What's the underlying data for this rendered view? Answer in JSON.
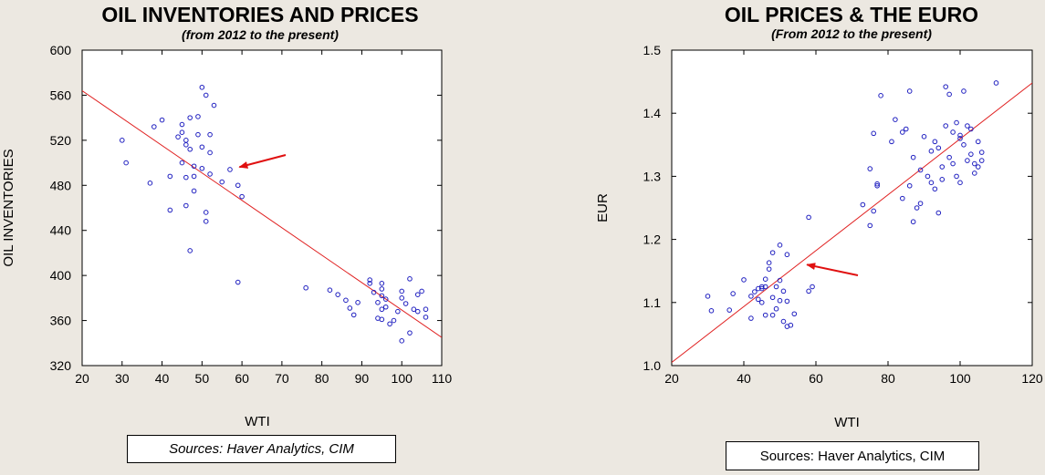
{
  "chart_data": [
    {
      "type": "scatter",
      "title": "OIL INVENTORIES AND PRICES",
      "subtitle": "(from 2012 to the present)",
      "xlabel": "WTI",
      "ylabel": "OIL INVENTORIES",
      "xlim": [
        20,
        110
      ],
      "ylim": [
        320,
        600
      ],
      "xticks": [
        20,
        30,
        40,
        50,
        60,
        70,
        80,
        90,
        100,
        110
      ],
      "yticks": [
        320,
        360,
        400,
        440,
        480,
        520,
        560,
        600
      ],
      "source": "Sources:  Haver Analytics, CIM",
      "regression_line": {
        "x": [
          20,
          110
        ],
        "y": [
          564,
          345
        ]
      },
      "arrow_target": {
        "x": 58,
        "y": 497
      },
      "colors": {
        "points": "#2020c0",
        "line": "#e02020",
        "arrow": "#e01010"
      },
      "points": [
        [
          30,
          520
        ],
        [
          31,
          500
        ],
        [
          37,
          482
        ],
        [
          38,
          532
        ],
        [
          40,
          538
        ],
        [
          42,
          488
        ],
        [
          42,
          458
        ],
        [
          44,
          523
        ],
        [
          45,
          527
        ],
        [
          45,
          534
        ],
        [
          45,
          500
        ],
        [
          46,
          516
        ],
        [
          46,
          520
        ],
        [
          46,
          462
        ],
        [
          46,
          487
        ],
        [
          47,
          540
        ],
        [
          47,
          512
        ],
        [
          47,
          422
        ],
        [
          48,
          475
        ],
        [
          48,
          497
        ],
        [
          48,
          488
        ],
        [
          49,
          541
        ],
        [
          49,
          525
        ],
        [
          50,
          567
        ],
        [
          50,
          514
        ],
        [
          50,
          495
        ],
        [
          51,
          456
        ],
        [
          51,
          448
        ],
        [
          51,
          560
        ],
        [
          52,
          490
        ],
        [
          52,
          509
        ],
        [
          52,
          525
        ],
        [
          53,
          551
        ],
        [
          55,
          483
        ],
        [
          57,
          494
        ],
        [
          59,
          480
        ],
        [
          59,
          394
        ],
        [
          60,
          470
        ],
        [
          76,
          389
        ],
        [
          82,
          387
        ],
        [
          84,
          383
        ],
        [
          86,
          378
        ],
        [
          87,
          371
        ],
        [
          88,
          365
        ],
        [
          89,
          376
        ],
        [
          92,
          396
        ],
        [
          92,
          393
        ],
        [
          93,
          385
        ],
        [
          94,
          362
        ],
        [
          94,
          376
        ],
        [
          95,
          393
        ],
        [
          95,
          388
        ],
        [
          95,
          382
        ],
        [
          95,
          370
        ],
        [
          95,
          361
        ],
        [
          96,
          379
        ],
        [
          97,
          357
        ],
        [
          98,
          360
        ],
        [
          99,
          368
        ],
        [
          100,
          380
        ],
        [
          100,
          386
        ],
        [
          100,
          342
        ],
        [
          101,
          375
        ],
        [
          102,
          349
        ],
        [
          102,
          397
        ],
        [
          103,
          370
        ],
        [
          104,
          368
        ],
        [
          105,
          386
        ],
        [
          106,
          370
        ],
        [
          106,
          363
        ],
        [
          104,
          383
        ],
        [
          96,
          372
        ]
      ]
    },
    {
      "type": "scatter",
      "title": "OIL PRICES & THE EURO",
      "subtitle": "(From 2012 to the present)",
      "xlabel": "WTI",
      "ylabel": "EUR",
      "xlim": [
        20,
        120
      ],
      "ylim": [
        1.0,
        1.5
      ],
      "xticks": [
        20,
        40,
        60,
        80,
        100,
        120
      ],
      "yticks": [
        1.0,
        1.1,
        1.2,
        1.3,
        1.4,
        1.5
      ],
      "source": "Sources:  Haver Analytics, CIM",
      "regression_line": {
        "x": [
          20,
          120
        ],
        "y": [
          1.005,
          1.448
        ]
      },
      "arrow_target": {
        "x": 56,
        "y": 1.16
      },
      "colors": {
        "points": "#2020c0",
        "line": "#e02020",
        "arrow": "#e01010"
      },
      "points": [
        [
          30,
          1.11
        ],
        [
          31,
          1.087
        ],
        [
          36,
          1.088
        ],
        [
          37,
          1.114
        ],
        [
          40,
          1.136
        ],
        [
          42,
          1.075
        ],
        [
          42,
          1.11
        ],
        [
          43,
          1.117
        ],
        [
          44,
          1.105
        ],
        [
          44,
          1.122
        ],
        [
          45,
          1.125
        ],
        [
          45,
          1.122
        ],
        [
          45,
          1.1
        ],
        [
          46,
          1.125
        ],
        [
          46,
          1.08
        ],
        [
          46,
          1.137
        ],
        [
          47,
          1.153
        ],
        [
          47,
          1.163
        ],
        [
          48,
          1.179
        ],
        [
          48,
          1.08
        ],
        [
          48,
          1.108
        ],
        [
          49,
          1.09
        ],
        [
          49,
          1.125
        ],
        [
          50,
          1.191
        ],
        [
          50,
          1.135
        ],
        [
          50,
          1.103
        ],
        [
          51,
          1.07
        ],
        [
          51,
          1.118
        ],
        [
          52,
          1.062
        ],
        [
          52,
          1.102
        ],
        [
          52,
          1.176
        ],
        [
          53,
          1.064
        ],
        [
          54,
          1.082
        ],
        [
          58,
          1.235
        ],
        [
          58,
          1.118
        ],
        [
          59,
          1.125
        ],
        [
          73,
          1.255
        ],
        [
          75,
          1.222
        ],
        [
          75,
          1.312
        ],
        [
          76,
          1.245
        ],
        [
          77,
          1.285
        ],
        [
          76,
          1.368
        ],
        [
          77,
          1.288
        ],
        [
          78,
          1.428
        ],
        [
          81,
          1.355
        ],
        [
          82,
          1.39
        ],
        [
          84,
          1.265
        ],
        [
          84,
          1.37
        ],
        [
          85,
          1.375
        ],
        [
          86,
          1.435
        ],
        [
          86,
          1.285
        ],
        [
          87,
          1.33
        ],
        [
          87,
          1.228
        ],
        [
          88,
          1.25
        ],
        [
          89,
          1.31
        ],
        [
          90,
          1.363
        ],
        [
          91,
          1.3
        ],
        [
          92,
          1.29
        ],
        [
          92,
          1.34
        ],
        [
          93,
          1.28
        ],
        [
          93,
          1.355
        ],
        [
          94,
          1.242
        ],
        [
          95,
          1.315
        ],
        [
          95,
          1.295
        ],
        [
          96,
          1.442
        ],
        [
          96,
          1.38
        ],
        [
          97,
          1.43
        ],
        [
          98,
          1.37
        ],
        [
          98,
          1.32
        ],
        [
          99,
          1.3
        ],
        [
          100,
          1.29
        ],
        [
          100,
          1.36
        ],
        [
          100,
          1.365
        ],
        [
          101,
          1.435
        ],
        [
          101,
          1.35
        ],
        [
          102,
          1.38
        ],
        [
          102,
          1.325
        ],
        [
          103,
          1.375
        ],
        [
          103,
          1.335
        ],
        [
          104,
          1.32
        ],
        [
          104,
          1.305
        ],
        [
          105,
          1.315
        ],
        [
          105,
          1.355
        ],
        [
          106,
          1.338
        ],
        [
          106,
          1.325
        ],
        [
          110,
          1.448
        ],
        [
          89,
          1.257
        ],
        [
          94,
          1.345
        ],
        [
          97,
          1.33
        ],
        [
          99,
          1.385
        ]
      ]
    }
  ]
}
